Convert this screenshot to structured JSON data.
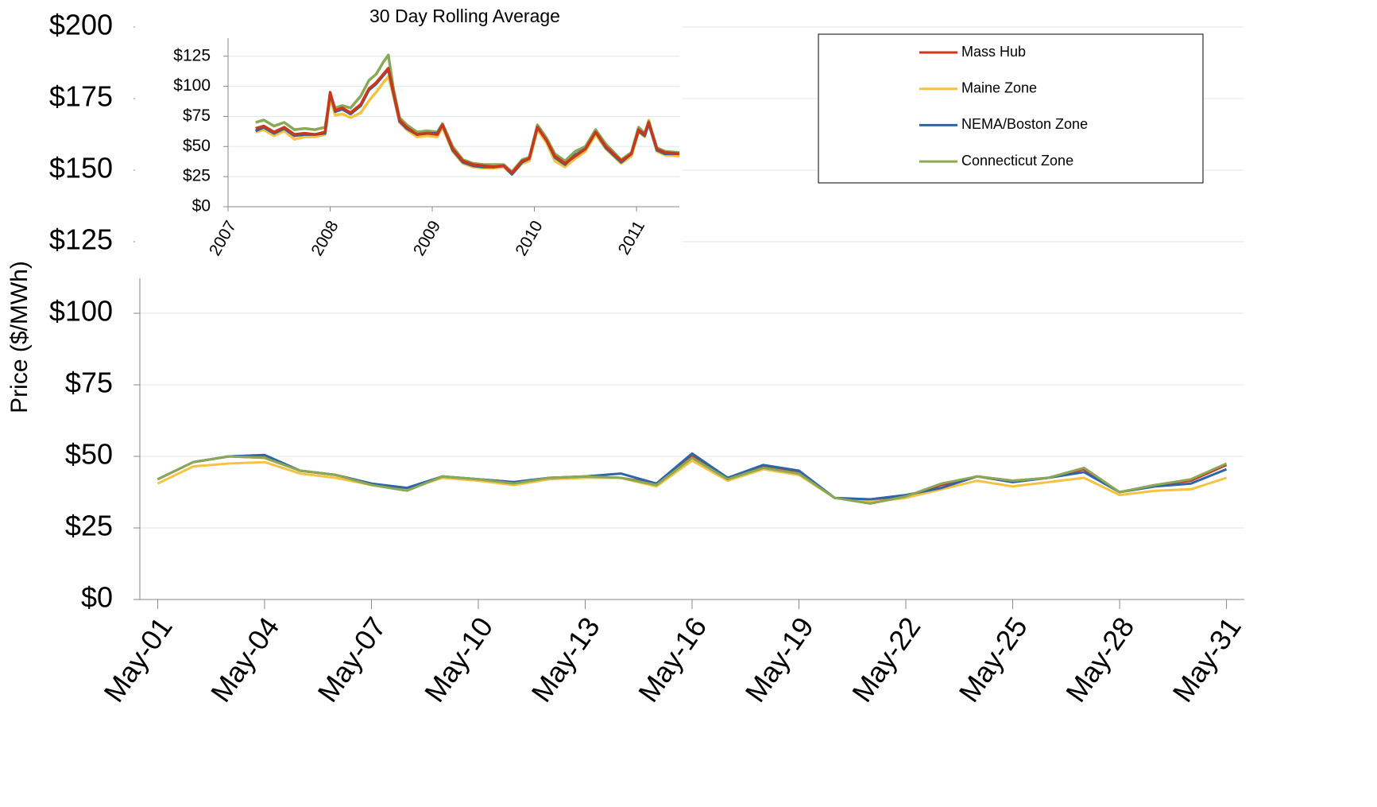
{
  "chart_data": [
    {
      "type": "line",
      "y_label": "Price ($/MWh)",
      "categories": [
        "May-01",
        null,
        null,
        "May-04",
        null,
        null,
        "May-07",
        null,
        null,
        "May-10",
        null,
        null,
        "May-13",
        null,
        null,
        "May-16",
        null,
        null,
        "May-19",
        null,
        null,
        "May-22",
        null,
        null,
        "May-25",
        null,
        null,
        "May-28",
        null,
        null,
        "May-31"
      ],
      "series": [
        {
          "name": "Mass Hub",
          "color": "#c8391c",
          "values": [
            42,
            48,
            50,
            49.5,
            45,
            43.5,
            40.5,
            38.5,
            43,
            42,
            41,
            42.5,
            43,
            42.5,
            40.5,
            50,
            42.5,
            46.5,
            44.5,
            35.5,
            34,
            36,
            40,
            43,
            41.5,
            42.5,
            45.5,
            37.5,
            40,
            41.5,
            47
          ]
        },
        {
          "name": "Maine Zone",
          "color": "#f5c242",
          "values": [
            40.5,
            46.5,
            47.5,
            48,
            44,
            42.5,
            40,
            38.5,
            42.5,
            41.5,
            40,
            42,
            42.5,
            42.5,
            39.5,
            48.5,
            41.5,
            45.5,
            43.5,
            35.5,
            34,
            35.5,
            38.5,
            41.5,
            39.5,
            41,
            42.5,
            36.5,
            38,
            38.5,
            42.5
          ]
        },
        {
          "name": "NEMA/Boston Zone",
          "color": "#2e64a8",
          "values": [
            42,
            48,
            50,
            50.5,
            45,
            43.5,
            40.5,
            39,
            43,
            42,
            41,
            42.5,
            43,
            44,
            40.5,
            51,
            42.5,
            47,
            45,
            35.5,
            35,
            36.5,
            39,
            43,
            41,
            42.5,
            44.5,
            37.5,
            39.5,
            40.5,
            45.5
          ]
        },
        {
          "name": "Connecticut Zone",
          "color": "#8aa856",
          "values": [
            42,
            48,
            50,
            49.5,
            45,
            43.5,
            40,
            38,
            43,
            42,
            40.5,
            42.5,
            43,
            42.5,
            40,
            49.5,
            42,
            46,
            44,
            35.5,
            33.5,
            36,
            40.5,
            43,
            41.5,
            42.5,
            46,
            37.5,
            40,
            42,
            47.5
          ]
        }
      ],
      "ylim": [
        0,
        200
      ],
      "yticks": [
        {
          "value": 0,
          "label": "$0"
        },
        {
          "value": 25,
          "label": "$25"
        },
        {
          "value": 50,
          "label": "$50"
        },
        {
          "value": 75,
          "label": "$75"
        },
        {
          "value": 100,
          "label": "$100"
        },
        {
          "value": 125,
          "label": "$125"
        },
        {
          "value": 150,
          "label": "$150"
        },
        {
          "value": 175,
          "label": "$175"
        },
        {
          "value": 200,
          "label": "$200"
        }
      ],
      "grid": true,
      "legend": "upper right"
    },
    {
      "type": "line",
      "title": "30 Day Rolling Average",
      "x": [
        2007.27,
        2007.35,
        2007.45,
        2007.55,
        2007.65,
        2007.75,
        2007.85,
        2007.95,
        2008.0,
        2008.05,
        2008.12,
        2008.2,
        2008.3,
        2008.38,
        2008.45,
        2008.52,
        2008.57,
        2008.62,
        2008.68,
        2008.75,
        2008.85,
        2008.95,
        2009.05,
        2009.1,
        2009.2,
        2009.3,
        2009.4,
        2009.5,
        2009.6,
        2009.7,
        2009.78,
        2009.88,
        2009.95,
        2010.03,
        2010.12,
        2010.2,
        2010.3,
        2010.4,
        2010.5,
        2010.6,
        2010.7,
        2010.85,
        2010.95,
        2011.02,
        2011.08,
        2011.12,
        2011.2,
        2011.28,
        2011.42
      ],
      "series": [
        {
          "color": "#f5c242",
          "values": [
            62,
            64,
            59,
            63,
            56,
            58,
            58,
            60,
            90,
            76,
            77,
            74,
            78,
            88,
            95,
            103,
            108,
            92,
            70,
            64,
            58,
            59,
            58,
            66,
            46,
            36,
            33,
            32,
            32,
            33,
            27,
            36,
            38,
            64,
            53,
            38,
            33,
            40,
            46,
            60,
            48,
            36,
            42,
            62,
            58,
            72,
            46,
            43,
            42
          ]
        },
        {
          "color": "#8aa856",
          "values": [
            70,
            72,
            67,
            70,
            64,
            65,
            64,
            66,
            92,
            82,
            84,
            82,
            92,
            105,
            110,
            120,
            126,
            98,
            74,
            68,
            62,
            63,
            62,
            69,
            50,
            39,
            36,
            35,
            35,
            35,
            29,
            39,
            41,
            68,
            57,
            44,
            38,
            46,
            50,
            64,
            52,
            39,
            45,
            66,
            61,
            71,
            49,
            46,
            45
          ]
        },
        {
          "color": "#2e64a8",
          "values": [
            63,
            66,
            61,
            65,
            59,
            60,
            60,
            61,
            94,
            79,
            81,
            77,
            84,
            97,
            102,
            109,
            114,
            94,
            71,
            65,
            60,
            61,
            61,
            68,
            47,
            37,
            34,
            33,
            33,
            34,
            27,
            37,
            40,
            66,
            55,
            41,
            35,
            43,
            48,
            62,
            49,
            37,
            44,
            63,
            59,
            69,
            47,
            44,
            44
          ]
        },
        {
          "color": "#c8391c",
          "values": [
            65,
            67,
            62,
            66,
            60,
            61,
            60,
            62,
            95,
            80,
            82,
            78,
            85,
            98,
            103,
            110,
            115,
            95,
            72,
            66,
            60,
            61,
            60,
            68,
            48,
            38,
            35,
            34,
            33,
            34,
            28,
            38,
            40,
            66,
            55,
            42,
            36,
            42,
            48,
            62,
            50,
            38,
            44,
            64,
            60,
            70,
            48,
            45,
            44
          ]
        }
      ],
      "xlim": [
        2007,
        2011.42
      ],
      "xticks": [
        2007,
        2008,
        2009,
        2010,
        2011
      ],
      "ylim": [
        0,
        140
      ],
      "yticks": [
        {
          "value": 0,
          "label": "$0"
        },
        {
          "value": 25,
          "label": "$25"
        },
        {
          "value": 50,
          "label": "$50"
        },
        {
          "value": 75,
          "label": "$75"
        },
        {
          "value": 100,
          "label": "$100"
        },
        {
          "value": 125,
          "label": "$125"
        }
      ],
      "grid": true
    }
  ]
}
